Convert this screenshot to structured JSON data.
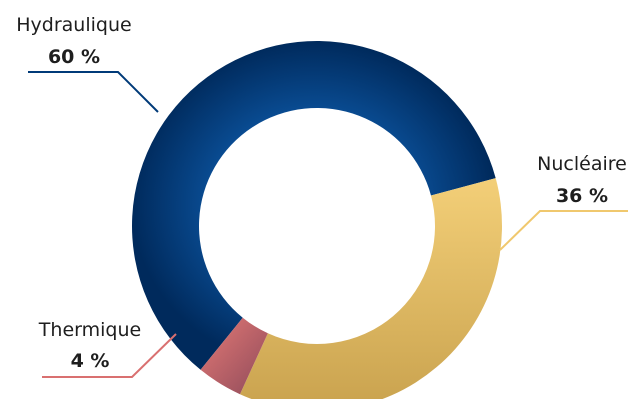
{
  "chart_data": {
    "type": "pie",
    "variant": "donut",
    "title": "",
    "slices": [
      {
        "label": "Hydraulique",
        "value": 60,
        "value_label": "60 %",
        "color": "#003a78"
      },
      {
        "label": "Nucléaire",
        "value": 36,
        "value_label": "36 %",
        "color": "#f0c86e"
      },
      {
        "label": "Thermique",
        "value": 4,
        "value_label": "4 %",
        "color": "#d97070"
      }
    ],
    "legend": "none",
    "labels_placement": "outside-with-leader-lines"
  }
}
